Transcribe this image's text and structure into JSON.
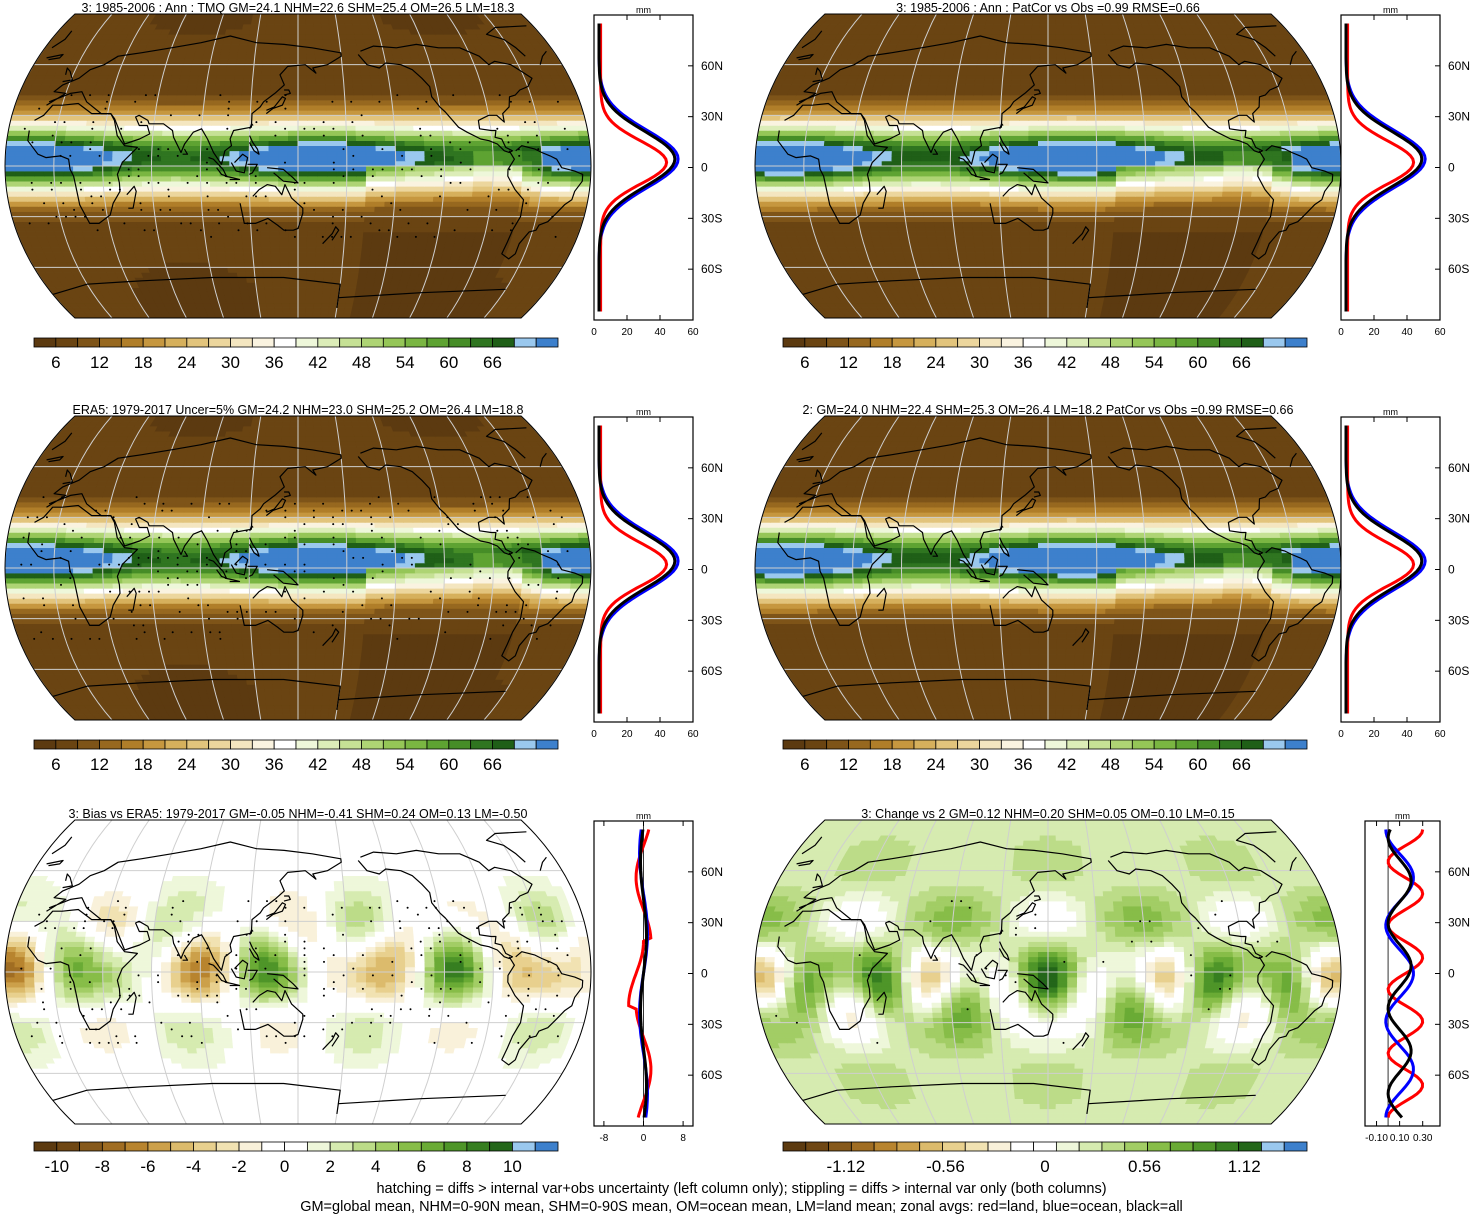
{
  "palette": {
    "brown": [
      "#5c3a10",
      "#6f4714",
      "#86591b",
      "#a06d22",
      "#b8842e",
      "#cca04a",
      "#dcbb6c",
      "#e8d08e",
      "#f1e2b2",
      "#f9f1da",
      "#ffffff"
    ],
    "green": [
      "#eef7da",
      "#d6ebb0",
      "#bcdc88",
      "#a2cd65",
      "#87bd48",
      "#6aab35",
      "#4e9528",
      "#367e20",
      "#236619",
      "#9ac8ee",
      "#3d80cc"
    ],
    "pos_colorbar": [
      "#5c3a10",
      "#6a4412",
      "#7e5418",
      "#97681f",
      "#b07e29",
      "#c6973f",
      "#d6b05c",
      "#e2c47c",
      "#ecd69d",
      "#f4e6c0",
      "#faf3e0",
      "#ffffff",
      "#eef7da",
      "#dcedb8",
      "#c6e195",
      "#aed474",
      "#95c657",
      "#7ab642",
      "#5ea332",
      "#468d27",
      "#2f7520",
      "#1f5f17",
      "#9ac8ee",
      "#3d80cc"
    ],
    "diff_colorbar": [
      "#5c3a10",
      "#6f4714",
      "#86591b",
      "#a06d22",
      "#b8842e",
      "#cca04a",
      "#dcbb6c",
      "#e8d08e",
      "#f1e2b2",
      "#f9f1da",
      "#ffffff",
      "#ffffff",
      "#eef7da",
      "#d6ebb0",
      "#bcdc88",
      "#a2cd65",
      "#87bd48",
      "#6aab35",
      "#4e9528",
      "#367e20",
      "#236619",
      "#9ac8ee",
      "#3d80cc"
    ],
    "line_land": "#ff0000",
    "line_ocean": "#0000ff",
    "line_all": "#000000"
  },
  "panels": [
    {
      "title": "3: 1985-2006 : Ann : TMQ GM=24.1 NHM=22.6 SHM=25.4 OM=26.5 LM=18.3",
      "type": "mean",
      "cb_labels": [
        "6",
        "12",
        "18",
        "24",
        "30",
        "36",
        "42",
        "48",
        "54",
        "60",
        "66"
      ],
      "zonal": {
        "unit": "mm",
        "xticks": [
          "0",
          "20",
          "40",
          "60"
        ],
        "xlim": [
          0,
          60
        ],
        "yticks": [
          "60N",
          "30N",
          "0",
          "30S",
          "60S"
        ]
      }
    },
    {
      "title": "3: 1985-2006 : Ann : PatCor vs Obs =0.99 RMSE=0.66",
      "type": "mean",
      "cb_labels": [
        "6",
        "12",
        "18",
        "24",
        "30",
        "36",
        "42",
        "48",
        "54",
        "60",
        "66"
      ],
      "zonal": {
        "unit": "mm",
        "xticks": [
          "0",
          "20",
          "40",
          "60"
        ],
        "xlim": [
          0,
          60
        ],
        "yticks": [
          "60N",
          "30N",
          "0",
          "30S",
          "60S"
        ]
      }
    },
    {
      "title": "ERA5: 1979-2017 Uncer=5% GM=24.2 NHM=23.0 SHM=25.2 OM=26.4 LM=18.8",
      "type": "mean",
      "cb_labels": [
        "6",
        "12",
        "18",
        "24",
        "30",
        "36",
        "42",
        "48",
        "54",
        "60",
        "66"
      ],
      "zonal": {
        "unit": "mm",
        "xticks": [
          "0",
          "20",
          "40",
          "60"
        ],
        "xlim": [
          0,
          60
        ],
        "yticks": [
          "60N",
          "30N",
          "0",
          "30S",
          "60S"
        ]
      }
    },
    {
      "title": "2: GM=24.0 NHM=22.4 SHM=25.3 OM=26.4 LM=18.2 PatCor vs Obs =0.99 RMSE=0.66",
      "type": "mean",
      "cb_labels": [
        "6",
        "12",
        "18",
        "24",
        "30",
        "36",
        "42",
        "48",
        "54",
        "60",
        "66"
      ],
      "zonal": {
        "unit": "mm",
        "xticks": [
          "0",
          "20",
          "40",
          "60"
        ],
        "xlim": [
          0,
          60
        ],
        "yticks": [
          "60N",
          "30N",
          "0",
          "30S",
          "60S"
        ]
      }
    },
    {
      "title": "3: Bias vs ERA5: 1979-2017 GM=-0.05 NHM=-0.41 SHM=0.24 OM=0.13 LM=-0.50",
      "type": "bias",
      "cb_labels": [
        "-10",
        "-8",
        "-6",
        "-4",
        "-2",
        "0",
        "2",
        "4",
        "6",
        "8",
        "10"
      ],
      "zonal": {
        "unit": "mm",
        "xticks": [
          "-8",
          "0",
          "8"
        ],
        "xlim": [
          -10,
          10
        ],
        "yticks": [
          "60N",
          "30N",
          "0",
          "30S",
          "60S"
        ]
      }
    },
    {
      "title": "3: Change vs 2 GM=0.12 NHM=0.20 SHM=0.05 OM=0.10 LM=0.15",
      "type": "change",
      "cb_labels": [
        "-1.12",
        "-0.56",
        "0",
        "0.56",
        "1.12"
      ],
      "zonal": {
        "unit": "mm",
        "xticks": [
          "-0.10",
          "0.10",
          "0.30"
        ],
        "xlim": [
          -0.2,
          0.45
        ],
        "yticks": [
          "60N",
          "30N",
          "0",
          "30S",
          "60S"
        ]
      }
    }
  ],
  "footnote": {
    "line1": "hatching = diffs > internal var+obs uncertainty (left column only); stippling = diffs > internal var only (both columns)",
    "line2": "GM=global mean, NHM=0-90N mean, SHM=0-90S mean, OM=ocean mean, LM=land mean; zonal avgs: red=land, blue=ocean, black=all"
  }
}
